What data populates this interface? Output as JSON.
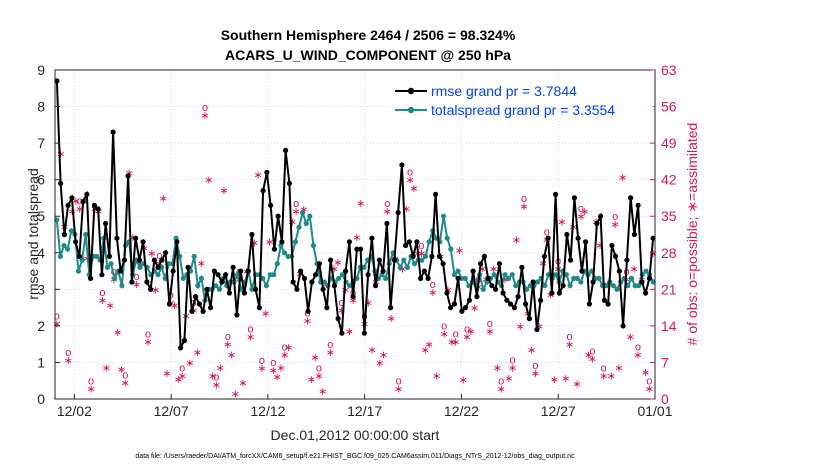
{
  "chart_data": {
    "type": "line",
    "title": "Southern Hemisphere 2464 / 2506 = 98.324%",
    "subtitle": "ACARS_U_WIND_COMPONENT @ 250 hPa",
    "xlabel": "Dec.01,2012 00:00:00 start",
    "ylabel_left": "rmse and totalspread",
    "ylabel_right": "# of obs: o=possible; ∗=assimilated",
    "footnote": "data file: /Users/raeder/DAI/ATM_forcXX/CAM6_setup/f.e21.FHIST_BGC.f09_025.CAM6assim.011/Diags_NTrS_2012-12/obs_diag_output.nc",
    "xlim": [
      1,
      32
    ],
    "ylim_left": [
      0,
      9
    ],
    "ylim_right": [
      0,
      63
    ],
    "x_ticks": [
      2,
      7,
      12,
      17,
      22,
      27,
      32
    ],
    "x_tick_labels": [
      "12/02",
      "12/07",
      "12/12",
      "12/17",
      "12/22",
      "12/27",
      "01/01"
    ],
    "y_ticks_left": [
      "0",
      "1",
      "2",
      "3",
      "4",
      "5",
      "6",
      "7",
      "8",
      "9"
    ],
    "y_ticks_right": [
      "0",
      "7",
      "14",
      "21",
      "28",
      "35",
      "42",
      "49",
      "56",
      "63"
    ],
    "series": [
      {
        "name": "rmse grand pr = 3.7844",
        "color": "#000000",
        "marker": "circle",
        "values": [
          8.7,
          5.9,
          4.5,
          5.3,
          5.5,
          4.3,
          3.9,
          5.4,
          5.6,
          3.3,
          5.3,
          5.2,
          3.4,
          4.8,
          3.9,
          7.3,
          4.4,
          3.5,
          3.8,
          6.1,
          3.2,
          4.4,
          3.8,
          4.3,
          3.2,
          3.0,
          3.8,
          3.6,
          3.8,
          4.0,
          2.6,
          3.5,
          4.3,
          1.4,
          1.6,
          3.6,
          2.4,
          2.8,
          2.6,
          2.4,
          3.0,
          2.5,
          3.5,
          3.4,
          3.2,
          3.4,
          2.9,
          3.6,
          2.3,
          3.5,
          2.9,
          3.5,
          4.5,
          3.0,
          2.5,
          5.7,
          6.2,
          5.3,
          4.1,
          5.0,
          4.3,
          6.8,
          5.9,
          3.2,
          3.0,
          3.5,
          3.3,
          2.4,
          3.2,
          3.4,
          3.7,
          3.0,
          2.5,
          3.8,
          3.1,
          2.2,
          1.8,
          3.5,
          4.3,
          2.8,
          4.1,
          4.1,
          1.8,
          3.4,
          4.4,
          3.1,
          3.8,
          3.5,
          4.8,
          2.5,
          3.8,
          5.1,
          6.4,
          4.2,
          4.3,
          3.9,
          4.3,
          3.3,
          3.5,
          3.3,
          3.9,
          5.6,
          3.9,
          3.7,
          2.9,
          2.5,
          2.6,
          3.3,
          2.4,
          2.5,
          2.7,
          3.5,
          2.8,
          3.7,
          3.9,
          3.3,
          3.1,
          3.0,
          3.7,
          2.9,
          2.7,
          2.6,
          2.5,
          2.8,
          3.6,
          2.6,
          2.2,
          3.2,
          1.9,
          2.7,
          3.9,
          4.4,
          2.9,
          5.6,
          2.9,
          3.1,
          4.5,
          3.8,
          5.5,
          4.4,
          3.5,
          4.3,
          2.6,
          3.2,
          4.8,
          5.0,
          2.7,
          2.6,
          4.2,
          3.9,
          3.5,
          2.0,
          3.8,
          5.5,
          4.5,
          5.3,
          3.2,
          2.9,
          3.3,
          4.4
        ]
      },
      {
        "name": "totalspread grand pr = 3.3554",
        "color": "#1f8a8a",
        "marker": "circle",
        "values": [
          4.9,
          3.9,
          4.2,
          4.1,
          4.6,
          4.5,
          3.5,
          3.8,
          4.5,
          3.4,
          3.9,
          3.9,
          3.8,
          4.4,
          3.6,
          3.7,
          3.3,
          3.5,
          3.1,
          4.2,
          4.3,
          3.4,
          3.8,
          3.6,
          3.7,
          3.6,
          3.4,
          3.5,
          3.4,
          3.6,
          3.3,
          3.7,
          3.7,
          4.4,
          3.9,
          3.3,
          3.4,
          3.5,
          3.9,
          3.1,
          3.3,
          2.7,
          3.0,
          3.0,
          3.1,
          3.0,
          3.3,
          3.1,
          3.2,
          3.2,
          3.4,
          3.0,
          3.2,
          3.5,
          3.0,
          3.4,
          3.4,
          3.3,
          3.1,
          3.4,
          3.4,
          3.7,
          4.2,
          4.0,
          3.9,
          3.9,
          4.3,
          4.7,
          5.1,
          4.8,
          5.0,
          4.2,
          3.7,
          3.2,
          3.2,
          3.1,
          3.3,
          3.2,
          3.3,
          3.4,
          3.2,
          3.1,
          3.2,
          3.3,
          3.6,
          3.6,
          3.8,
          3.9,
          3.5,
          3.3,
          3.4,
          3.3,
          3.7,
          4.0,
          3.8,
          3.6,
          3.8,
          3.6,
          3.9,
          3.7,
          3.8,
          3.8,
          3.9,
          4.3,
          4.6,
          4.4,
          4.3,
          5.0,
          4.4,
          4.1,
          3.4,
          3.5,
          3.3,
          3.3,
          3.1,
          3.2,
          3.1,
          3.4,
          3.0,
          3.2,
          3.3,
          3.4,
          3.2,
          3.1,
          3.4,
          3.3,
          3.4,
          3.1,
          3.2,
          3.2,
          3.0,
          3.1,
          3.1,
          3.2,
          3.3,
          3.1,
          3.4,
          3.3,
          3.4,
          3.2,
          3.5,
          3.4,
          3.1,
          3.3,
          3.3,
          3.2,
          3.5,
          3.4,
          3.5,
          3.3,
          3.3,
          3.1,
          3.1,
          3.2,
          3.1,
          3.0,
          3.2,
          3.3,
          3.1,
          3.3,
          3.1,
          3.1,
          3.4,
          3.5,
          3.4,
          3.2
        ]
      }
    ],
    "obs_series": {
      "name": "# of obs",
      "color": "#d6185a",
      "values": [
        14.5,
        47,
        33,
        7.5,
        36,
        38,
        36.5,
        38,
        27,
        2,
        36.5,
        36,
        19,
        6,
        18,
        23,
        12.8,
        5.7,
        3.2,
        43.4,
        31,
        22,
        26,
        29,
        11,
        28,
        21,
        26,
        38.5,
        5,
        18.5,
        18,
        3.8,
        4.5,
        16,
        7,
        17,
        9,
        26,
        54.4,
        42,
        4.5,
        2.8,
        6,
        40,
        10.5,
        8.5,
        1.1,
        23,
        3.2,
        24.5,
        12,
        30,
        43,
        5.9,
        16.5,
        30.2,
        5.6,
        4.3,
        6,
        8.5,
        10,
        34,
        36,
        24,
        36.4,
        15,
        3.8,
        8,
        4.5,
        1.5,
        22,
        9,
        25,
        26.2,
        17,
        21,
        13,
        19,
        31,
        37.5,
        14.5,
        18.5,
        9.5,
        22.5,
        7,
        8.5,
        36,
        15.5,
        27,
        2,
        25,
        36.5,
        42,
        40.4,
        28,
        28,
        9.5,
        10.5,
        20.5,
        4.5,
        27.4,
        12.5,
        21,
        11,
        11,
        28.5,
        3.7,
        12,
        13,
        17.5,
        21.5,
        25,
        23,
        13,
        25,
        6,
        2,
        23,
        4,
        6,
        30.5,
        14,
        37,
        16.5,
        9.5,
        5,
        14,
        26,
        30.5,
        20,
        3.8,
        25,
        34,
        4,
        10.5,
        33,
        3,
        35,
        36,
        8.5,
        7.8,
        34,
        29.5,
        4.5,
        22,
        4.5,
        33.5,
        6,
        42.5,
        23,
        12,
        25,
        8.5,
        23,
        5.2,
        2,
        28
      ]
    },
    "obs_possible_markers": "o",
    "obs_assimilated_markers": "∗"
  }
}
